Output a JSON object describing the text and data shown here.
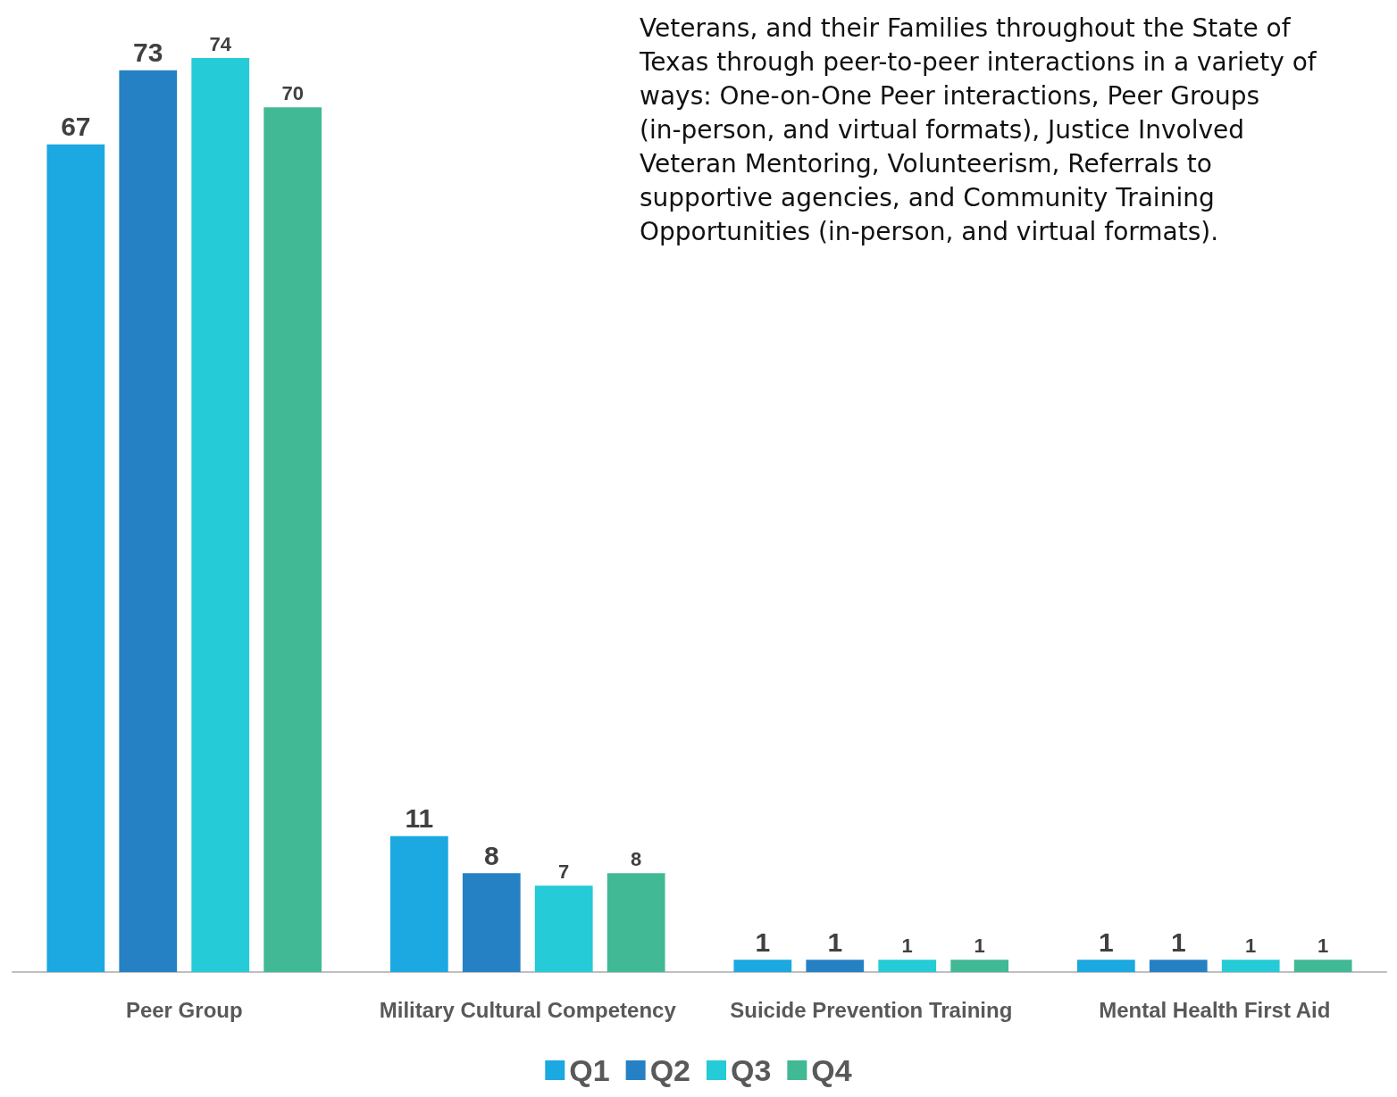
{
  "chart_data": {
    "type": "bar",
    "categories": [
      "Peer Group",
      "Military Cultural Competency",
      "Suicide Prevention Training",
      "Mental Health First Aid"
    ],
    "series": [
      {
        "name": "Q1",
        "color": "#1ca8e0",
        "values": [
          67,
          11,
          1,
          1
        ]
      },
      {
        "name": "Q2",
        "color": "#2581c4",
        "values": [
          73,
          8,
          1,
          1
        ]
      },
      {
        "name": "Q3",
        "color": "#25cbd6",
        "values": [
          74,
          7,
          1,
          1
        ]
      },
      {
        "name": "Q4",
        "color": "#41b994",
        "values": [
          70,
          8,
          1,
          1
        ]
      }
    ],
    "data_labels": true,
    "legend": "bottom",
    "annotations": [
      "Veterans, and their Families throughout the State of Texas through peer-to-peer interactions in a variety of ways: One-on-One Peer interactions, Peer Groups (in-person, and virtual formats), Justice Involved Veteran Mentoring, Volunteerism, Referrals to supportive agencies, and Community Training Opportunities (in-person, and virtual formats)."
    ]
  }
}
